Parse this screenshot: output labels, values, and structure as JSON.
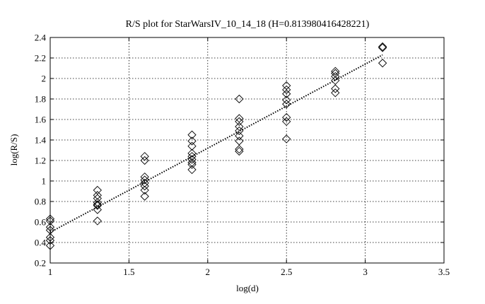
{
  "chart_data": {
    "type": "scatter",
    "title": "R/S plot for StarWarsIV_10_14_18 (H=0.813980416428221)",
    "xlabel": "log(d)",
    "ylabel": "log(R/S)",
    "xlim": [
      1,
      3.5
    ],
    "ylim": [
      0.2,
      2.4
    ],
    "x_ticks": [
      "1",
      "1.5",
      "2",
      "2.5",
      "3",
      "3.5"
    ],
    "y_ticks": [
      "0.2",
      "0.4",
      "0.6",
      "0.8",
      "1",
      "1.2",
      "1.4",
      "1.6",
      "1.8",
      "2",
      "2.2",
      "2.4"
    ],
    "grid": true,
    "marker": "diamond",
    "series": [
      {
        "points": [
          [
            1.0,
            0.63
          ],
          [
            1.0,
            0.61
          ],
          [
            1.0,
            0.55
          ],
          [
            1.0,
            0.52
          ],
          [
            1.0,
            0.45
          ],
          [
            1.0,
            0.42
          ],
          [
            1.0,
            0.37
          ],
          [
            1.3,
            0.91
          ],
          [
            1.3,
            0.86
          ],
          [
            1.3,
            0.83
          ],
          [
            1.3,
            0.79
          ],
          [
            1.3,
            0.77
          ],
          [
            1.3,
            0.76
          ],
          [
            1.3,
            0.72
          ],
          [
            1.3,
            0.61
          ],
          [
            1.6,
            1.24
          ],
          [
            1.6,
            1.2
          ],
          [
            1.6,
            1.04
          ],
          [
            1.6,
            1.01
          ],
          [
            1.6,
            0.98
          ],
          [
            1.6,
            0.95
          ],
          [
            1.6,
            0.91
          ],
          [
            1.6,
            0.85
          ],
          [
            1.9,
            1.45
          ],
          [
            1.9,
            1.39
          ],
          [
            1.9,
            1.34
          ],
          [
            1.9,
            1.27
          ],
          [
            1.9,
            1.24
          ],
          [
            1.9,
            1.21
          ],
          [
            1.9,
            1.18
          ],
          [
            1.9,
            1.16
          ],
          [
            1.9,
            1.11
          ],
          [
            2.2,
            1.8
          ],
          [
            2.2,
            1.61
          ],
          [
            2.2,
            1.58
          ],
          [
            2.2,
            1.53
          ],
          [
            2.2,
            1.49
          ],
          [
            2.2,
            1.44
          ],
          [
            2.2,
            1.39
          ],
          [
            2.2,
            1.31
          ],
          [
            2.2,
            1.29
          ],
          [
            2.5,
            1.93
          ],
          [
            2.5,
            1.89
          ],
          [
            2.5,
            1.85
          ],
          [
            2.5,
            1.79
          ],
          [
            2.5,
            1.75
          ],
          [
            2.5,
            1.62
          ],
          [
            2.5,
            1.58
          ],
          [
            2.5,
            1.41
          ],
          [
            2.81,
            2.07
          ],
          [
            2.81,
            2.05
          ],
          [
            2.81,
            2.02
          ],
          [
            2.81,
            1.98
          ],
          [
            2.81,
            1.9
          ],
          [
            2.81,
            1.86
          ],
          [
            3.11,
            2.31
          ],
          [
            3.11,
            2.3
          ],
          [
            3.11,
            2.15
          ]
        ]
      }
    ],
    "fit_line": {
      "x": [
        1.0,
        3.11
      ],
      "y": [
        0.5,
        2.23
      ]
    }
  }
}
